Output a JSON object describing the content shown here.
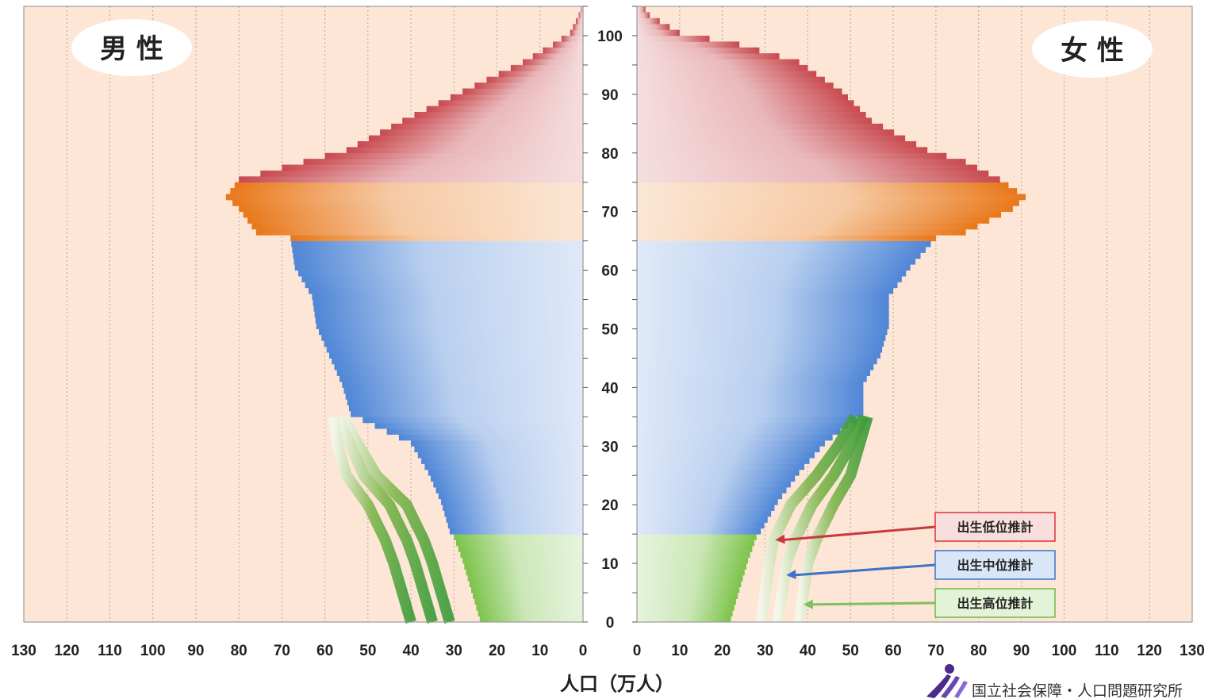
{
  "chart_data": {
    "type": "bar",
    "subtype": "population-pyramid",
    "xlabel": "人口（万人）",
    "ylabel": "",
    "x_ticks": [
      0,
      10,
      20,
      30,
      40,
      50,
      60,
      70,
      80,
      90,
      100,
      110,
      120,
      130
    ],
    "y_ticks": [
      0,
      10,
      20,
      30,
      40,
      50,
      60,
      70,
      80,
      90,
      100
    ],
    "xlim": [
      0,
      130
    ],
    "ylim": [
      0,
      105
    ],
    "male_label": "男 性",
    "female_label": "女 性",
    "age_groups": [
      {
        "range": [
          0,
          14
        ],
        "color": "#7cc34a"
      },
      {
        "range": [
          15,
          64
        ],
        "color": "#4f86d6"
      },
      {
        "range": [
          65,
          74
        ],
        "color": "#e8781a"
      },
      {
        "range": [
          75,
          105
        ],
        "color": "#c84a50"
      }
    ],
    "male": {
      "age": [
        0,
        5,
        10,
        14,
        15,
        20,
        25,
        30,
        35,
        40,
        45,
        50,
        55,
        60,
        65,
        66,
        70,
        72,
        75,
        78,
        80,
        85,
        90,
        95,
        98,
        100,
        103,
        105
      ],
      "values": [
        24,
        26,
        28,
        30,
        31,
        33,
        36,
        40,
        54,
        56,
        59,
        62,
        63,
        67,
        68,
        76,
        80,
        83,
        80,
        65,
        55,
        42,
        28,
        14,
        7,
        3,
        1,
        0
      ]
    },
    "female": {
      "age": [
        0,
        5,
        10,
        14,
        15,
        20,
        25,
        30,
        35,
        40,
        45,
        50,
        55,
        60,
        65,
        66,
        70,
        72,
        75,
        78,
        80,
        85,
        90,
        95,
        98,
        100,
        103,
        105
      ],
      "values": [
        22,
        24,
        26,
        28,
        29,
        33,
        38,
        44,
        53,
        53,
        57,
        59,
        59,
        64,
        70,
        77,
        88,
        91,
        85,
        77,
        68,
        55,
        48,
        38,
        24,
        10,
        3,
        1
      ]
    },
    "projections": [
      {
        "name": "出生低位推計",
        "border": "#e0313c",
        "fill": "#f9dede",
        "arrow": "#c8393f",
        "male": {
          "age": [
            0,
            5,
            10,
            14,
            20,
            25,
            30,
            35
          ],
          "values": [
            31,
            33,
            35,
            37,
            41,
            48,
            52,
            56
          ]
        },
        "female": {
          "age": [
            0,
            5,
            10,
            14,
            20,
            25,
            30,
            35
          ],
          "values": [
            29,
            30,
            31,
            32,
            36,
            42,
            47,
            51
          ]
        }
      },
      {
        "name": "出生中位推計",
        "border": "#3b73c8",
        "fill": "#d8e6f7",
        "arrow": "#3b73c8",
        "male": {
          "age": [
            0,
            5,
            10,
            14,
            20,
            25,
            30,
            35
          ],
          "values": [
            35,
            37,
            39,
            41,
            45,
            51,
            54,
            57
          ]
        },
        "female": {
          "age": [
            0,
            5,
            10,
            14,
            20,
            25,
            30,
            35
          ],
          "values": [
            33,
            34,
            35,
            37,
            41,
            46,
            50,
            53
          ]
        }
      },
      {
        "name": "出生高位推計",
        "border": "#70b84a",
        "fill": "#e3f3d8",
        "arrow": "#7fbf5f",
        "male": {
          "age": [
            0,
            5,
            10,
            14,
            20,
            25,
            30,
            35
          ],
          "values": [
            40,
            42,
            44,
            46,
            50,
            55,
            57,
            58
          ]
        },
        "female": {
          "age": [
            0,
            5,
            10,
            14,
            20,
            25,
            30,
            35
          ],
          "values": [
            38,
            39,
            40,
            42,
            46,
            50,
            52,
            54
          ]
        }
      }
    ],
    "grid": "vertical",
    "background": "#fde6d6",
    "source": "国立社会保障・人口問題研究所"
  }
}
